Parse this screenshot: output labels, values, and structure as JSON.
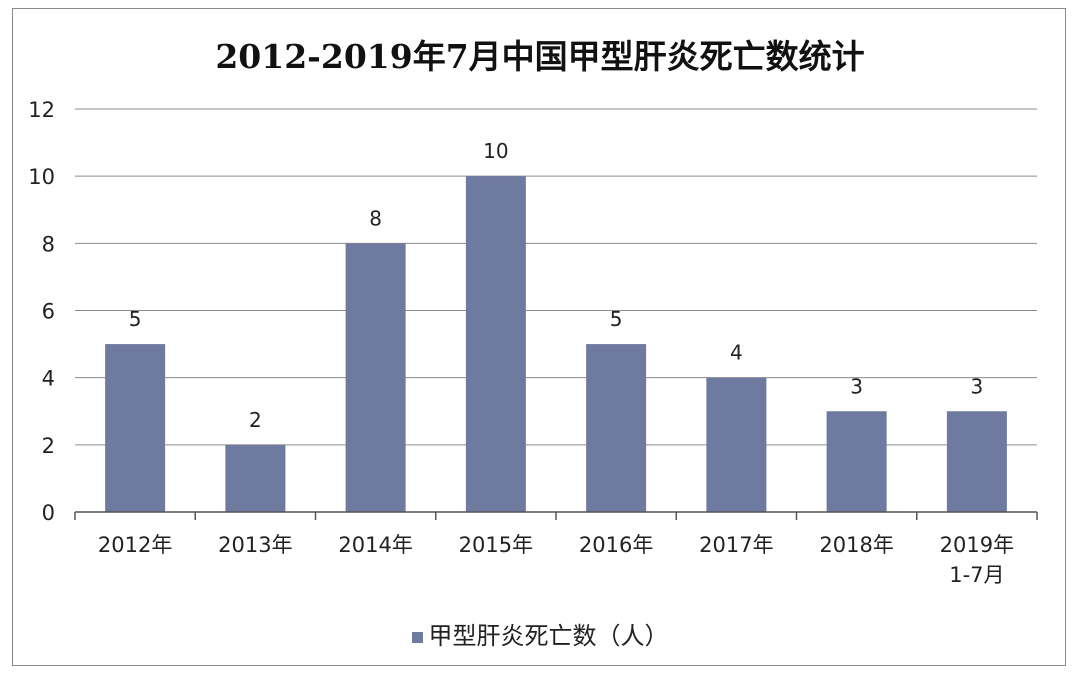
{
  "chart_data": {
    "type": "bar",
    "title": "2012-2019年7月中国甲型肝炎死亡数统计",
    "categories": [
      "2012年",
      "2013年",
      "2014年",
      "2015年",
      "2016年",
      "2017年",
      "2018年",
      "2019年\n1-7月"
    ],
    "series": [
      {
        "name": "甲型肝炎死亡数（人）",
        "values": [
          5,
          2,
          8,
          10,
          5,
          4,
          3,
          3
        ],
        "color": "#6e7a9f"
      }
    ],
    "xlabel": "",
    "ylabel": "",
    "ylim": [
      0,
      12
    ],
    "yticks": [
      0,
      2,
      4,
      6,
      8,
      10,
      12
    ],
    "grid": true,
    "legend_position": "bottom"
  }
}
